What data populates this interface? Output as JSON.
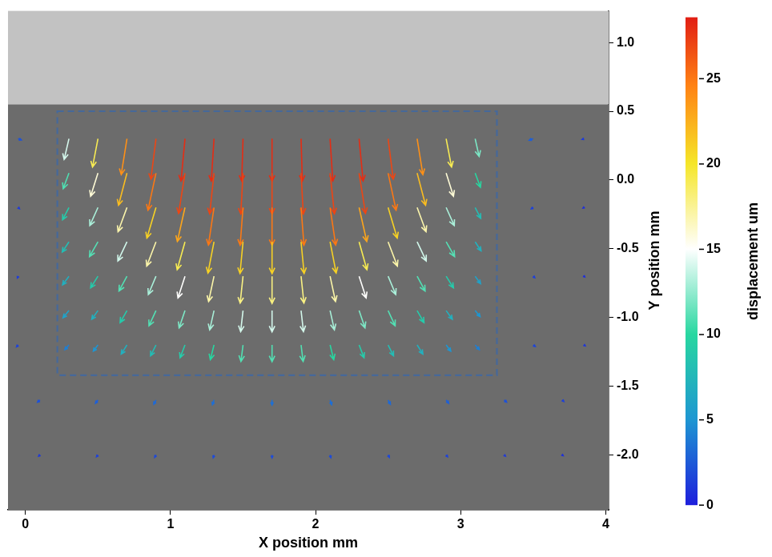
{
  "chart_data": {
    "type": "quiver",
    "x_label": "X position mm",
    "y_label": "Y position mm",
    "xlim": [
      -0.12,
      4.02
    ],
    "xticks": [
      0,
      1,
      2,
      3,
      4
    ],
    "ylim": [
      -2.4,
      1.23
    ],
    "yticks": [
      {
        "value": -2,
        "label": "-2.0"
      },
      -1.5,
      {
        "value": -1,
        "label": "-1.0"
      },
      -0.5,
      {
        "value": 0,
        "label": "0.0"
      },
      0.5,
      {
        "value": 1,
        "label": "1.0"
      }
    ],
    "grid": false,
    "specimen_top": 0.55,
    "region": {
      "x": [
        0.22,
        3.25
      ],
      "y": [
        -1.42,
        0.5
      ]
    },
    "colorbar": {
      "label": "displacement um",
      "range": [
        0,
        28.6
      ],
      "ticks": [
        0,
        5,
        10,
        15,
        20,
        25
      ]
    },
    "field": [
      {
        "y": 0.3,
        "x": [
          0.3,
          0.5,
          0.7,
          0.9,
          1.1,
          1.3,
          1.5,
          1.7,
          1.9,
          2.1,
          2.3,
          2.5,
          2.7,
          2.9,
          3.1
        ],
        "u": [
          -3,
          -3.4,
          -3.6,
          -3.2,
          -2.5,
          -1.7,
          -0.8,
          0,
          0.8,
          1.7,
          2.5,
          3.2,
          3.6,
          3.4,
          2.5
        ],
        "v": [
          -13.7,
          -18.7,
          -23.7,
          -26.8,
          -27.9,
          -28,
          -28,
          -28,
          -28,
          -28,
          -27.9,
          -26.8,
          -23.7,
          -18.7,
          -11.7
        ]
      },
      {
        "y": 0.05,
        "x": [
          0.3,
          0.5,
          0.7,
          0.9,
          1.1,
          1.3,
          1.5,
          1.7,
          1.9,
          2.1,
          2.3,
          2.5,
          2.7,
          2.9,
          3.1
        ],
        "u": [
          -3.6,
          -4.6,
          -5.3,
          -5,
          -4,
          -2.7,
          -1.4,
          0,
          1.4,
          2.7,
          4,
          5,
          5.3,
          4.6,
          3.3
        ],
        "v": [
          -10.3,
          -15.3,
          -21.3,
          -24.5,
          -26.7,
          -26.9,
          -27,
          -27,
          -27,
          -26.9,
          -26.7,
          -24.5,
          -21.3,
          -15.3,
          -9.4
        ]
      },
      {
        "y": -0.2,
        "x": [
          0.3,
          0.5,
          0.7,
          0.9,
          1.1,
          1.3,
          1.5,
          1.7,
          1.9,
          2.1,
          2.3,
          2.5,
          2.7,
          2.9,
          3.1
        ],
        "u": [
          -4,
          -5.1,
          -5.6,
          -5.7,
          -4.8,
          -3.5,
          -1.8,
          0,
          1.8,
          3.5,
          4.8,
          5.7,
          5.6,
          5.1,
          3.5
        ],
        "v": [
          -8.1,
          -12,
          -16,
          -20.2,
          -22.5,
          -24.8,
          -24.9,
          -25,
          -24.9,
          -24.8,
          -22.5,
          -20.2,
          -16,
          -12,
          -7.2
        ]
      },
      {
        "y": -0.45,
        "x": [
          0.3,
          0.5,
          0.7,
          0.9,
          1.1,
          1.3,
          1.5,
          1.7,
          1.9,
          2.1,
          2.3,
          2.5,
          2.7,
          2.9,
          3.1
        ],
        "u": [
          -4.2,
          -5.3,
          -5.7,
          -5.8,
          -4.9,
          -3.8,
          -1.9,
          0,
          1.9,
          3.8,
          4.9,
          5.8,
          5.7,
          5.3,
          3.7
        ],
        "v": [
          -6.8,
          -9.7,
          -12.7,
          -16,
          -18.4,
          -20.6,
          -20.9,
          -21,
          -20.9,
          -20.6,
          -18.4,
          -16,
          -12.7,
          -9.7,
          -6
        ]
      },
      {
        "y": -0.7,
        "x": [
          0.3,
          0.5,
          0.7,
          0.9,
          1.1,
          1.3,
          1.5,
          1.7,
          1.9,
          2.1,
          2.3,
          2.5,
          2.7,
          2.9,
          3.1
        ],
        "u": [
          -4,
          -4.6,
          -5,
          -4.8,
          -4.4,
          -3.4,
          -1.8,
          0,
          1.8,
          3.4,
          4.4,
          4.8,
          5,
          4.6,
          3.4
        ],
        "v": [
          -5.7,
          -7.7,
          -9.8,
          -12.1,
          -14.4,
          -16.7,
          -17.8,
          -18,
          -17.8,
          -16.7,
          -14.4,
          -12.1,
          -9.8,
          -7.7,
          -4.9
        ]
      },
      {
        "y": -0.95,
        "x": [
          0.3,
          0.5,
          0.7,
          0.9,
          1.1,
          1.3,
          1.5,
          1.7,
          1.9,
          2.1,
          2.3,
          2.5,
          2.7,
          2.9,
          3.1
        ],
        "u": [
          -3.7,
          -3.9,
          -4.3,
          -4.4,
          -3.7,
          -2.7,
          -1.5,
          0,
          1.5,
          2.7,
          3.7,
          4.4,
          4.3,
          3.9,
          3.1
        ],
        "v": [
          -4.7,
          -5.8,
          -7.9,
          -10.1,
          -11.4,
          -12.7,
          -13.9,
          -14,
          -13.9,
          -12.7,
          -11.4,
          -10.1,
          -7.9,
          -5.8,
          -4
        ]
      },
      {
        "y": -1.2,
        "x": [
          0.3,
          0.5,
          0.7,
          0.9,
          1.1,
          1.3,
          1.5,
          1.7,
          1.9,
          2.1,
          2.3,
          2.5,
          2.7,
          2.9,
          3.1
        ],
        "u": [
          -2.6,
          -2.9,
          -3.6,
          -3.4,
          -3.1,
          -2.3,
          -1.3,
          0,
          1.3,
          2.3,
          3.1,
          3.4,
          3.6,
          2.9,
          2.6
        ],
        "v": [
          -3.1,
          -4.1,
          -6,
          -7.2,
          -8.5,
          -9.7,
          -10.9,
          -11,
          -10.9,
          -9.7,
          -8.5,
          -7.2,
          -6,
          -4.1,
          -3.1
        ]
      },
      {
        "y": -1.6,
        "x": [
          0.1,
          0.5,
          0.9,
          1.3,
          1.7,
          2.1,
          2.5,
          2.9,
          3.3,
          3.7
        ],
        "u": [
          -1.5,
          -1.6,
          -1.4,
          -1,
          0,
          1,
          1.4,
          1.6,
          1.5,
          1
        ],
        "v": [
          -1.5,
          -2.2,
          -2.8,
          -3.2,
          -3.4,
          -3.2,
          -2.8,
          -2.2,
          -1.5,
          -1
        ]
      },
      {
        "y": -2.0,
        "x": [
          0.1,
          0.5,
          0.9,
          1.3,
          1.7,
          2.1,
          2.5,
          2.9,
          3.3,
          3.7
        ],
        "u": [
          -0.8,
          -0.9,
          -0.8,
          -0.5,
          0,
          0.5,
          0.8,
          0.9,
          0.8,
          0.6
        ],
        "v": [
          -0.8,
          -1.2,
          -1.6,
          -1.8,
          -1.9,
          -1.8,
          -1.6,
          -1.2,
          -0.8,
          -0.5
        ]
      },
      {
        "y": 0.3,
        "x": [
          -0.05,
          3.5,
          3.85
        ],
        "u": [
          2,
          -2.5,
          -1.2
        ],
        "v": [
          -0.8,
          -1,
          -0.4
        ]
      },
      {
        "y": -0.2,
        "x": [
          -0.05,
          3.5,
          3.85
        ],
        "u": [
          0.8,
          -1.2,
          -0.6
        ],
        "v": [
          -0.8,
          -0.9,
          -0.4
        ]
      },
      {
        "y": -0.7,
        "x": [
          -0.05,
          3.5,
          3.85
        ],
        "u": [
          -0.5,
          1,
          0.5
        ],
        "v": [
          -1.2,
          -1,
          -0.5
        ]
      },
      {
        "y": -1.2,
        "x": [
          -0.05,
          3.5,
          3.85
        ],
        "u": [
          -1,
          1.3,
          0.8
        ],
        "v": [
          -1.2,
          -1,
          -0.6
        ]
      }
    ]
  }
}
